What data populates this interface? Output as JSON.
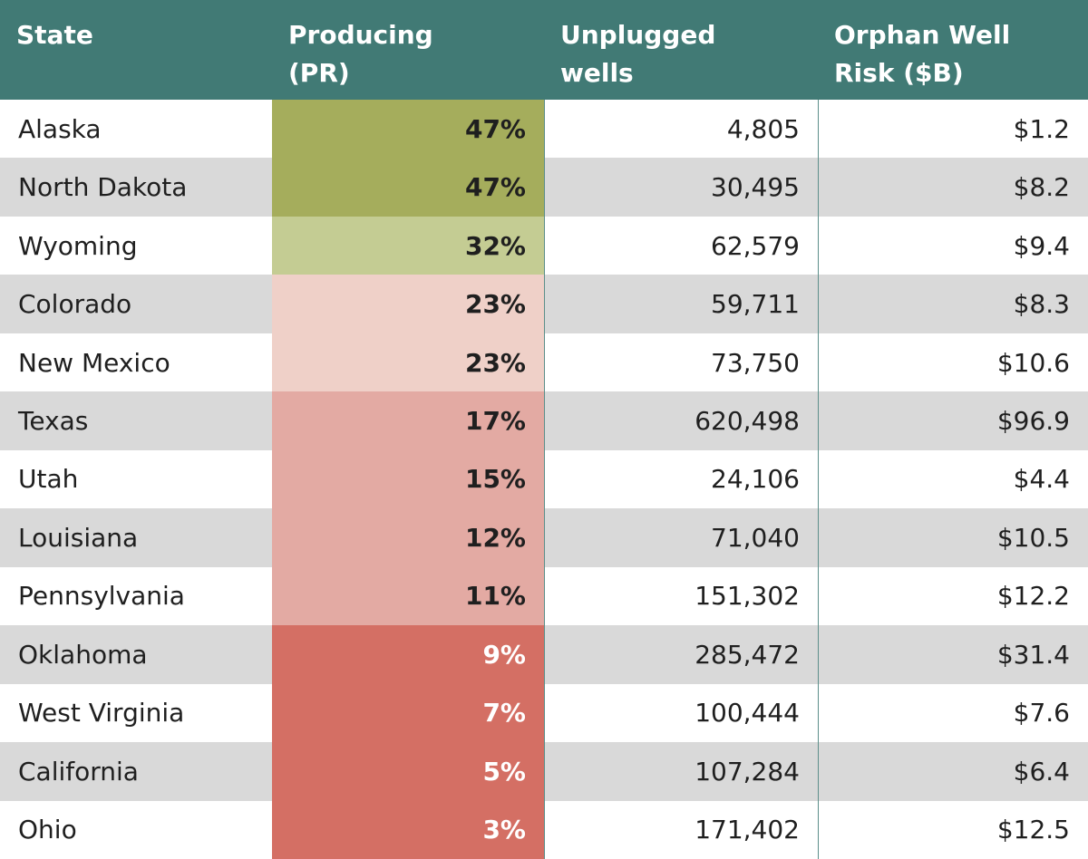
{
  "table": {
    "header": [
      "State",
      "Producing (PR)",
      "Unplugged wells",
      "Orphan Well Risk ($B)"
    ],
    "rows": [
      [
        "Alaska",
        "47%",
        "4,805",
        "$1.2"
      ],
      [
        "North Dakota",
        "47%",
        "30,495",
        "$8.2"
      ],
      [
        "Wyoming",
        "32%",
        "62,579",
        "$9.4"
      ],
      [
        "Colorado",
        "23%",
        "59,711",
        "$8.3"
      ],
      [
        "New Mexico",
        "23%",
        "73,750",
        "$10.6"
      ],
      [
        "Texas",
        "17%",
        "620,498",
        "$96.9"
      ],
      [
        "Utah",
        "15%",
        "24,106",
        "$4.4"
      ],
      [
        "Louisiana",
        "12%",
        "71,040",
        "$10.5"
      ],
      [
        "Pennsylvania",
        "11%",
        "151,302",
        "$12.2"
      ],
      [
        "Oklahoma",
        "9%",
        "285,472",
        "$31.4"
      ],
      [
        "West Virginia",
        "7%",
        "100,444",
        "$7.6"
      ],
      [
        "California",
        "5%",
        "107,284",
        "$6.4"
      ],
      [
        "Ohio",
        "3%",
        "171,402",
        "$12.5"
      ]
    ],
    "producing_colors": [
      "#a5ad5c",
      "#a5ad5c",
      "#c4cc93",
      "#efd0c8",
      "#efd0c8",
      "#e3aaa3",
      "#e3aaa3",
      "#e3aaa3",
      "#e3aaa3",
      "#d46f64",
      "#d46f64",
      "#d46f64",
      "#d46f64"
    ],
    "stripe_color": "#d9d9d9"
  }
}
